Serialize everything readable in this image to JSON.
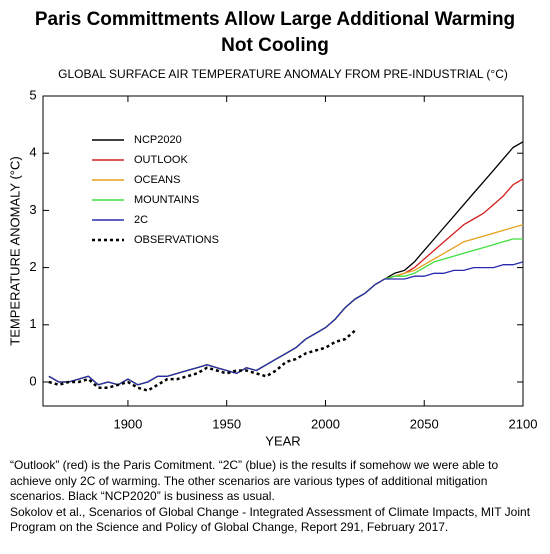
{
  "chart_data": {
    "type": "line",
    "title": "Paris Committments Allow Large Additional Warming",
    "title_line2": "Not Cooling",
    "subtitle": "GLOBAL SURFACE AIR TEMPERATURE ANOMALY FROM PRE-INDUSTRIAL (°C)",
    "x_label": "YEAR",
    "y_label": "TEMPERATURE ANOMALY (°C)",
    "x": [
      1860,
      1865,
      1870,
      1875,
      1880,
      1885,
      1890,
      1895,
      1900,
      1905,
      1910,
      1915,
      1920,
      1925,
      1930,
      1935,
      1940,
      1945,
      1950,
      1955,
      1960,
      1965,
      1970,
      1975,
      1980,
      1985,
      1990,
      1995,
      2000,
      2005,
      2010,
      2015,
      2020,
      2025,
      2030,
      2035,
      2040,
      2045,
      2050,
      2055,
      2060,
      2065,
      2070,
      2075,
      2080,
      2085,
      2090,
      2095,
      2100
    ],
    "series": [
      {
        "name": "NCP2020",
        "color": "#000000",
        "values": [
          0.1,
          0.0,
          0.0,
          0.05,
          0.1,
          -0.05,
          0.0,
          -0.05,
          0.05,
          -0.05,
          0.0,
          0.1,
          0.1,
          0.15,
          0.2,
          0.25,
          0.3,
          0.25,
          0.2,
          0.15,
          0.25,
          0.2,
          0.3,
          0.4,
          0.5,
          0.6,
          0.75,
          0.85,
          0.95,
          1.1,
          1.3,
          1.45,
          1.55,
          1.7,
          1.8,
          1.9,
          1.95,
          2.1,
          2.3,
          2.5,
          2.7,
          2.9,
          3.1,
          3.3,
          3.5,
          3.7,
          3.9,
          4.1,
          4.2
        ]
      },
      {
        "name": "OUTLOOK",
        "color": "#d42020",
        "values": [
          0.1,
          0.0,
          0.0,
          0.05,
          0.1,
          -0.05,
          0.0,
          -0.05,
          0.05,
          -0.05,
          0.0,
          0.1,
          0.1,
          0.15,
          0.2,
          0.25,
          0.3,
          0.25,
          0.2,
          0.15,
          0.25,
          0.2,
          0.3,
          0.4,
          0.5,
          0.6,
          0.75,
          0.85,
          0.95,
          1.1,
          1.3,
          1.45,
          1.55,
          1.7,
          1.8,
          1.85,
          1.9,
          2.0,
          2.15,
          2.3,
          2.45,
          2.6,
          2.75,
          2.85,
          2.95,
          3.1,
          3.25,
          3.45,
          3.55
        ]
      },
      {
        "name": "OCEANS",
        "color": "#e8a020",
        "values": [
          0.1,
          0.0,
          0.0,
          0.05,
          0.1,
          -0.05,
          0.0,
          -0.05,
          0.05,
          -0.05,
          0.0,
          0.1,
          0.1,
          0.15,
          0.2,
          0.25,
          0.3,
          0.25,
          0.2,
          0.15,
          0.25,
          0.2,
          0.3,
          0.4,
          0.5,
          0.6,
          0.75,
          0.85,
          0.95,
          1.1,
          1.3,
          1.45,
          1.55,
          1.7,
          1.8,
          1.85,
          1.9,
          1.95,
          2.05,
          2.15,
          2.25,
          2.35,
          2.45,
          2.5,
          2.55,
          2.6,
          2.65,
          2.7,
          2.75
        ]
      },
      {
        "name": "MOUNTAINS",
        "color": "#40e040",
        "values": [
          0.1,
          0.0,
          0.0,
          0.05,
          0.1,
          -0.05,
          0.0,
          -0.05,
          0.05,
          -0.05,
          0.0,
          0.1,
          0.1,
          0.15,
          0.2,
          0.25,
          0.3,
          0.25,
          0.2,
          0.15,
          0.25,
          0.2,
          0.3,
          0.4,
          0.5,
          0.6,
          0.75,
          0.85,
          0.95,
          1.1,
          1.3,
          1.45,
          1.55,
          1.7,
          1.8,
          1.85,
          1.85,
          1.9,
          2.0,
          2.1,
          2.15,
          2.2,
          2.25,
          2.3,
          2.35,
          2.4,
          2.45,
          2.5,
          2.5
        ]
      },
      {
        "name": "2C",
        "color": "#2a2ab0",
        "values": [
          0.1,
          0.0,
          0.0,
          0.05,
          0.1,
          -0.05,
          0.0,
          -0.05,
          0.05,
          -0.05,
          0.0,
          0.1,
          0.1,
          0.15,
          0.2,
          0.25,
          0.3,
          0.25,
          0.2,
          0.15,
          0.25,
          0.2,
          0.3,
          0.4,
          0.5,
          0.6,
          0.75,
          0.85,
          0.95,
          1.1,
          1.3,
          1.45,
          1.55,
          1.7,
          1.8,
          1.8,
          1.8,
          1.85,
          1.85,
          1.9,
          1.9,
          1.95,
          1.95,
          2.0,
          2.0,
          2.0,
          2.05,
          2.05,
          2.1
        ]
      },
      {
        "name": "OBSERVATIONS",
        "color": "#000000",
        "dashed": true,
        "values": [
          0.0,
          -0.05,
          0.0,
          0.0,
          0.05,
          -0.1,
          -0.1,
          -0.05,
          0.0,
          -0.1,
          -0.15,
          -0.05,
          0.05,
          0.05,
          0.1,
          0.15,
          0.25,
          0.2,
          0.15,
          0.2,
          0.2,
          0.15,
          0.1,
          0.2,
          0.35,
          0.4,
          0.5,
          0.55,
          0.6,
          0.7,
          0.75,
          0.9,
          null,
          null,
          null,
          null,
          null,
          null,
          null,
          null,
          null,
          null,
          null,
          null,
          null,
          null,
          null,
          null,
          null
        ]
      }
    ],
    "xlim": [
      1857,
      2100
    ],
    "ylim": [
      -0.42,
      5
    ],
    "xticks": [
      1900,
      1950,
      2000,
      2050,
      2100
    ],
    "yticks": [
      0,
      1,
      2,
      3,
      4,
      5
    ],
    "legend": "upper left",
    "notes": [
      "“Outlook” (red) is the Paris Comitment. “2C” (blue) is the results if somehow we were able to achieve only 2C of warming. The other scenarios are various types of additional mitigation scenarios. Black “NCP2020” is business as usual.",
      "Sokolov et al., Scenarios of Global Change - Integrated Assessment of Climate Impacts, MIT Joint Program on the Science and Policy of Global Change, Report 291, February 2017."
    ]
  }
}
